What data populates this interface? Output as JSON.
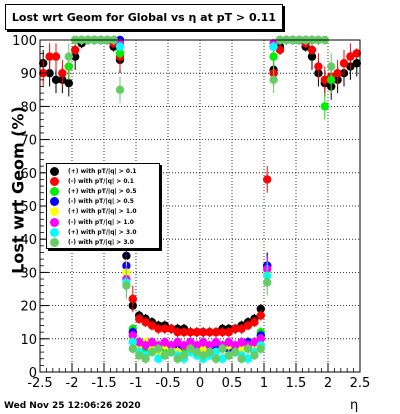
{
  "title": "Lost wrt Geom for Global vs  η at pT > 0.11",
  "footer": "Wed Nov 25 12:06:26 2020",
  "chart_data": {
    "type": "scatter",
    "xlabel": "η",
    "ylabel": "Lost wrt Geom (%)",
    "xlim": [
      -2.5,
      2.5
    ],
    "ylim": [
      0,
      100
    ],
    "x_ticks": [
      "-2.5",
      "-2",
      "-1.5",
      "-1",
      "-0.5",
      "0",
      "0.5",
      "1",
      "1.5",
      "2",
      "2.5"
    ],
    "y_ticks": [
      "0",
      "10",
      "20",
      "30",
      "40",
      "50",
      "60",
      "70",
      "80",
      "90",
      "100"
    ],
    "grid": true,
    "legend_position": "left-middle",
    "series": [
      {
        "name": "(+) with pT/|q| > 0.1",
        "color": "#000000",
        "x": [
          -2.45,
          -2.35,
          -2.25,
          -2.15,
          -2.05,
          -1.95,
          -1.85,
          -1.75,
          -1.65,
          -1.55,
          -1.45,
          -1.35,
          -1.25,
          -1.15,
          -1.05,
          -0.95,
          -0.85,
          -0.75,
          -0.65,
          -0.55,
          -0.45,
          -0.35,
          -0.25,
          -0.15,
          -0.05,
          0.05,
          0.15,
          0.25,
          0.35,
          0.45,
          0.55,
          0.65,
          0.75,
          0.85,
          0.95,
          1.05,
          1.15,
          1.25,
          1.35,
          1.45,
          1.55,
          1.65,
          1.75,
          1.85,
          1.95,
          2.05,
          2.15,
          2.25,
          2.35,
          2.45
        ],
        "y": [
          93,
          90,
          88,
          88,
          87,
          95,
          99,
          100,
          100,
          100,
          100,
          98,
          94,
          35,
          20,
          17,
          16,
          15,
          14,
          14,
          13,
          13,
          13,
          12,
          12,
          12,
          12,
          12,
          13,
          13,
          13,
          14,
          15,
          16,
          19,
          32,
          91,
          98,
          100,
          100,
          100,
          98,
          95,
          90,
          87,
          86,
          88,
          90,
          92,
          93
        ]
      },
      {
        "name": "(-) with pT/|q| > 0.1",
        "color": "#ff0000",
        "x": [
          -2.45,
          -2.35,
          -2.25,
          -2.15,
          -2.05,
          -1.95,
          -1.85,
          -1.75,
          -1.65,
          -1.55,
          -1.45,
          -1.35,
          -1.25,
          -1.15,
          -1.05,
          -0.95,
          -0.85,
          -0.75,
          -0.65,
          -0.55,
          -0.45,
          -0.35,
          -0.25,
          -0.15,
          -0.05,
          0.05,
          0.15,
          0.25,
          0.35,
          0.45,
          0.55,
          0.65,
          0.75,
          0.85,
          0.95,
          1.05,
          1.15,
          1.25,
          1.35,
          1.45,
          1.55,
          1.65,
          1.75,
          1.85,
          1.95,
          2.05,
          2.15,
          2.25,
          2.35,
          2.45
        ],
        "y": [
          90,
          95,
          95,
          90,
          92,
          97,
          100,
          100,
          100,
          100,
          100,
          99,
          95,
          38,
          22,
          16,
          15,
          14,
          13,
          13,
          13,
          12,
          12,
          12,
          12,
          12,
          12,
          12,
          12,
          12,
          13,
          13,
          14,
          15,
          17,
          58,
          90,
          97,
          100,
          100,
          100,
          99,
          97,
          92,
          88,
          89,
          90,
          93,
          95,
          96
        ]
      },
      {
        "name": "(+) with pT/|q| > 0.5",
        "color": "#00ee00",
        "x": [
          -2.05,
          -1.95,
          -1.85,
          -1.75,
          -1.65,
          -1.55,
          -1.45,
          -1.35,
          -1.25,
          -1.15,
          -1.05,
          -0.95,
          -0.85,
          -0.75,
          -0.65,
          -0.55,
          -0.45,
          -0.35,
          -0.25,
          -0.15,
          -0.05,
          0.05,
          0.15,
          0.25,
          0.35,
          0.45,
          0.55,
          0.65,
          0.75,
          0.85,
          0.95,
          1.05,
          1.15,
          1.25,
          1.35,
          1.45,
          1.55,
          1.65,
          1.75,
          1.85,
          1.95,
          2.05
        ],
        "y": [
          92,
          100,
          100,
          100,
          100,
          100,
          100,
          100,
          96,
          30,
          13,
          8,
          7,
          8,
          6,
          7,
          7,
          8,
          6,
          7,
          8,
          7,
          6,
          7,
          8,
          7,
          6,
          7,
          8,
          9,
          12,
          30,
          95,
          100,
          100,
          100,
          100,
          100,
          100,
          100,
          80,
          88
        ]
      },
      {
        "name": "(-) with pT/|q| > 0.5",
        "color": "#0000ff",
        "x": [
          -1.75,
          -1.65,
          -1.55,
          -1.45,
          -1.35,
          -1.25,
          -1.15,
          -1.05,
          -0.95,
          -0.85,
          -0.75,
          -0.65,
          -0.55,
          -0.45,
          -0.35,
          -0.25,
          -0.15,
          -0.05,
          0.05,
          0.15,
          0.25,
          0.35,
          0.45,
          0.55,
          0.65,
          0.75,
          0.85,
          0.95,
          1.05,
          1.15,
          1.25,
          1.35,
          1.45,
          1.55,
          1.65,
          1.75
        ],
        "y": [
          100,
          100,
          100,
          100,
          100,
          100,
          32,
          12,
          9,
          8,
          8,
          7,
          8,
          8,
          7,
          8,
          7,
          8,
          8,
          7,
          8,
          8,
          7,
          8,
          8,
          9,
          8,
          11,
          32,
          98,
          100,
          100,
          100,
          100,
          100,
          100
        ]
      },
      {
        "name": "(+) with pT/|q| > 1.0",
        "color": "#ffff00",
        "x": [
          -1.75,
          -1.65,
          -1.55,
          -1.45,
          -1.35,
          -1.25,
          -1.15,
          -1.05,
          -0.95,
          -0.85,
          -0.75,
          -0.65,
          -0.55,
          -0.45,
          -0.35,
          -0.25,
          -0.15,
          -0.05,
          0.05,
          0.15,
          0.25,
          0.35,
          0.45,
          0.55,
          0.65,
          0.75,
          0.85,
          0.95,
          1.05,
          1.15,
          1.25,
          1.35,
          1.45,
          1.55,
          1.65,
          1.75
        ],
        "y": [
          100,
          100,
          100,
          100,
          100,
          99,
          30,
          10,
          8,
          9,
          7,
          6,
          8,
          7,
          6,
          8,
          7,
          6,
          7,
          8,
          6,
          7,
          8,
          6,
          7,
          8,
          7,
          10,
          30,
          99,
          100,
          100,
          100,
          100,
          100,
          100
        ]
      },
      {
        "name": "(-) with pT/|q| > 1.0",
        "color": "#ff00ff",
        "x": [
          -1.75,
          -1.65,
          -1.55,
          -1.45,
          -1.35,
          -1.25,
          -1.15,
          -1.05,
          -0.95,
          -0.85,
          -0.75,
          -0.65,
          -0.55,
          -0.45,
          -0.35,
          -0.25,
          -0.15,
          -0.05,
          0.05,
          0.15,
          0.25,
          0.35,
          0.45,
          0.55,
          0.65,
          0.75,
          0.85,
          0.95,
          1.05,
          1.15,
          1.25,
          1.35,
          1.45,
          1.55,
          1.65,
          1.75
        ],
        "y": [
          100,
          100,
          100,
          100,
          100,
          99,
          28,
          11,
          9,
          8,
          9,
          8,
          9,
          8,
          9,
          8,
          9,
          8,
          9,
          8,
          9,
          8,
          9,
          8,
          9,
          8,
          9,
          10,
          31,
          99,
          100,
          100,
          100,
          100,
          100,
          100
        ]
      },
      {
        "name": "(+) with pT/|q| > 3.0",
        "color": "#00ffff",
        "x": [
          -1.75,
          -1.65,
          -1.55,
          -1.45,
          -1.35,
          -1.25,
          -1.15,
          -1.05,
          -0.95,
          -0.85,
          -0.75,
          -0.65,
          -0.55,
          -0.45,
          -0.35,
          -0.25,
          -0.15,
          -0.05,
          0.05,
          0.15,
          0.25,
          0.35,
          0.45,
          0.55,
          0.65,
          0.75,
          0.85,
          0.95,
          1.05,
          1.15,
          1.25,
          1.35,
          1.45,
          1.55,
          1.65,
          1.75
        ],
        "y": [
          100,
          100,
          100,
          100,
          100,
          98,
          27,
          9,
          6,
          5,
          6,
          4,
          5,
          6,
          5,
          4,
          6,
          5,
          4,
          5,
          6,
          4,
          5,
          6,
          5,
          4,
          6,
          8,
          29,
          98,
          100,
          100,
          100,
          100,
          100,
          100
        ]
      },
      {
        "name": "(-) with pT/|q| > 3.0",
        "color": "#66cc66",
        "x": [
          -2.05,
          -1.95,
          -1.85,
          -1.75,
          -1.65,
          -1.55,
          -1.45,
          -1.35,
          -1.25,
          -1.15,
          -1.05,
          -0.95,
          -0.85,
          -0.75,
          -0.65,
          -0.55,
          -0.45,
          -0.35,
          -0.25,
          -0.15,
          -0.05,
          0.05,
          0.15,
          0.25,
          0.35,
          0.45,
          0.55,
          0.65,
          0.75,
          0.85,
          0.95,
          1.05,
          1.15,
          1.25,
          1.35,
          1.45,
          1.55,
          1.65,
          1.75,
          1.85,
          1.95,
          2.05
        ],
        "y": [
          95,
          100,
          100,
          100,
          100,
          100,
          100,
          100,
          85,
          26,
          7,
          5,
          4,
          6,
          7,
          5,
          6,
          4,
          5,
          7,
          6,
          5,
          6,
          4,
          7,
          5,
          6,
          4,
          7,
          5,
          7,
          27,
          88,
          100,
          100,
          100,
          100,
          100,
          100,
          100,
          100,
          92
        ]
      }
    ]
  }
}
